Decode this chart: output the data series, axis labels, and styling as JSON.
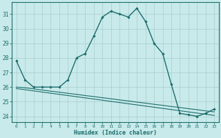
{
  "title": "",
  "xlabel": "Humidex (Indice chaleur)",
  "ylabel": "",
  "background_color": "#c8eaea",
  "line_color": "#1a6b6b",
  "grid_color": "#b0d0d0",
  "x_values": [
    0,
    1,
    2,
    3,
    4,
    5,
    6,
    7,
    8,
    9,
    10,
    11,
    12,
    13,
    14,
    15,
    16,
    17,
    18,
    19,
    20,
    21,
    22,
    23
  ],
  "y_main": [
    27.8,
    26.5,
    26.0,
    26.0,
    26.0,
    26.0,
    26.5,
    28.0,
    28.3,
    29.5,
    30.8,
    31.2,
    31.0,
    30.8,
    31.4,
    30.5,
    29.0,
    28.3,
    26.2,
    24.2,
    24.1,
    24.0,
    24.2,
    24.5
  ],
  "y_line2": [
    26.0,
    25.95,
    25.88,
    25.8,
    25.72,
    25.65,
    25.57,
    25.5,
    25.42,
    25.35,
    25.27,
    25.2,
    25.12,
    25.05,
    24.97,
    24.9,
    24.82,
    24.75,
    24.67,
    24.6,
    24.52,
    24.45,
    24.37,
    24.3
  ],
  "y_line3": [
    25.9,
    25.82,
    25.74,
    25.66,
    25.58,
    25.5,
    25.42,
    25.34,
    25.26,
    25.18,
    25.1,
    25.02,
    24.94,
    24.86,
    24.78,
    24.7,
    24.62,
    24.54,
    24.46,
    24.38,
    24.3,
    24.22,
    24.14,
    24.06
  ],
  "ylim": [
    23.6,
    31.8
  ],
  "xlim": [
    -0.5,
    23.5
  ],
  "yticks": [
    24,
    25,
    26,
    27,
    28,
    29,
    30,
    31
  ],
  "xticks": [
    0,
    1,
    2,
    3,
    4,
    5,
    6,
    7,
    8,
    9,
    10,
    11,
    12,
    13,
    14,
    15,
    16,
    17,
    18,
    19,
    20,
    21,
    22,
    23
  ],
  "xtick_labels": [
    "0",
    "1",
    "2",
    "3",
    "4",
    "5",
    "6",
    "7",
    "8",
    "9",
    "10",
    "11",
    "12",
    "13",
    "14",
    "15",
    "16",
    "17",
    "18",
    "19",
    "20",
    "21",
    "22",
    "23"
  ]
}
